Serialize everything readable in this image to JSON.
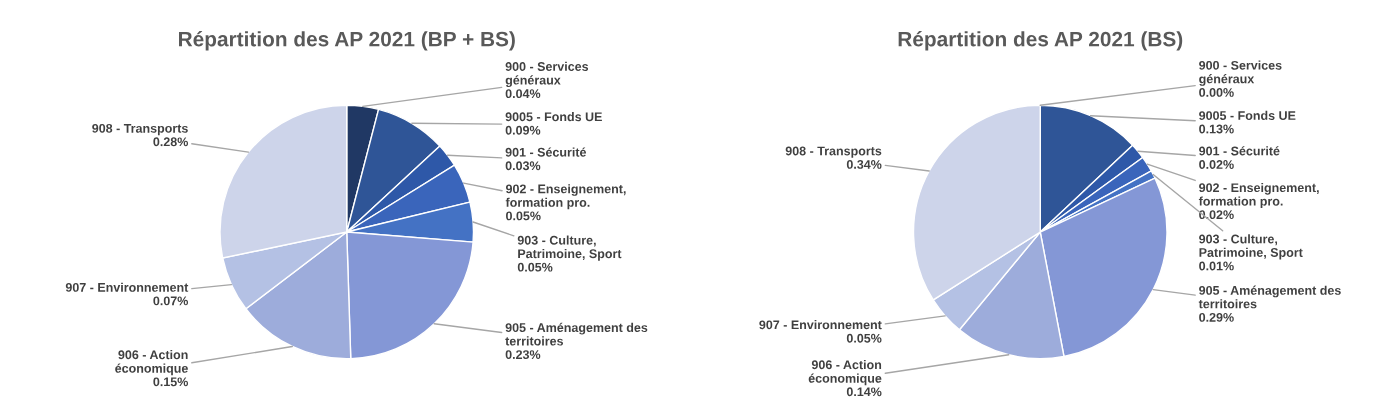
{
  "chart_data": [
    {
      "type": "pie",
      "title": "Répartition des AP 2021 (BP + BS)",
      "categories": [
        "900 - Services généraux",
        "9005 - Fonds UE",
        "901 - Sécurité",
        "902 - Enseignement, formation pro.",
        "903 - Culture, Patrimoine, Sport",
        "905 - Aménagement des territoires",
        "906 - Action économique",
        "907 - Environnement",
        "908 - Transports"
      ],
      "values": [
        0.04,
        0.09,
        0.03,
        0.05,
        0.05,
        0.23,
        0.15,
        0.07,
        0.28
      ],
      "value_labels": [
        "0.04%",
        "0.09%",
        "0.03%",
        "0.05%",
        "0.05%",
        "0.23%",
        "0.15%",
        "0.07%",
        "0.28%"
      ],
      "colors": [
        "#203864",
        "#2f5597",
        "#2e58a8",
        "#3a65bb",
        "#4472c4",
        "#8497d6",
        "#9dacdb",
        "#b4c1e4",
        "#cdd4ea"
      ]
    },
    {
      "type": "pie",
      "title": "Répartition des AP 2021 (BS)",
      "categories": [
        "900 - Services généraux",
        "9005 - Fonds UE",
        "901 - Sécurité",
        "902 - Enseignement, formation pro.",
        "903 - Culture, Patrimoine, Sport",
        "905 - Aménagement des territoires",
        "906 - Action économique",
        "907 - Environnement",
        "908 - Transports"
      ],
      "values": [
        0.0,
        0.13,
        0.02,
        0.02,
        0.01,
        0.29,
        0.14,
        0.05,
        0.34
      ],
      "value_labels": [
        "0.00%",
        "0.13%",
        "0.02%",
        "0.02%",
        "0.01%",
        "0.29%",
        "0.14%",
        "0.05%",
        "0.34%"
      ],
      "colors": [
        "#203864",
        "#2f5597",
        "#2e58a8",
        "#3a65bb",
        "#4472c4",
        "#8497d6",
        "#9dacdb",
        "#b4c1e4",
        "#cdd4ea"
      ]
    }
  ]
}
